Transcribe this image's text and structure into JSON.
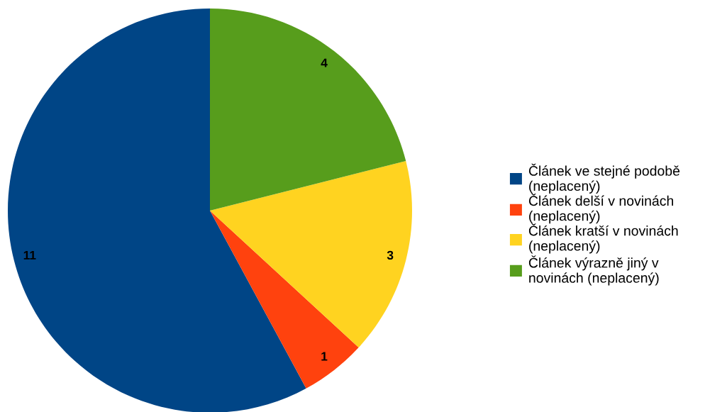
{
  "chart_data": {
    "type": "pie",
    "categories": [
      "Článek ve stejné podobě\n(neplacený)",
      "Článek delší v novinách\n(neplacený)",
      "Článek kratší v novinách\n(neplacený)",
      "Článek výrazně jiný v\nnovinách (neplacený)"
    ],
    "values": [
      11,
      1,
      3,
      4
    ],
    "colors": [
      "#004586",
      "#ff420e",
      "#ffd320",
      "#579d1c"
    ],
    "data_labels": true,
    "legend": "right"
  }
}
